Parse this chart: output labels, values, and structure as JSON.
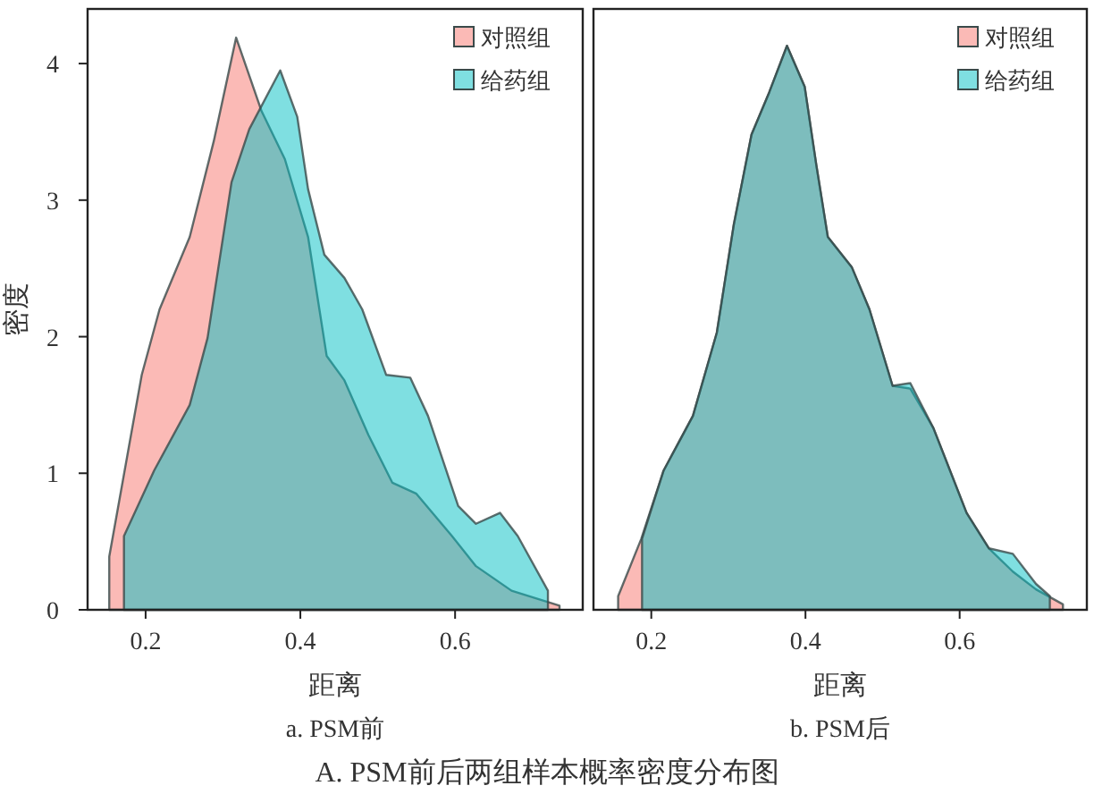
{
  "chart_data": [
    {
      "type": "area",
      "title": "a. PSM前",
      "xlabel": "距离",
      "ylabel": "密度",
      "annotations": [
        "A. PSM前后两组样本概率密度分布图"
      ],
      "xlim": [
        0.125,
        0.765
      ],
      "ylim": [
        0,
        4.4
      ],
      "xticks": [
        0.2,
        0.4,
        0.6
      ],
      "yticks": [
        0,
        1,
        2,
        3,
        4
      ],
      "legend": "top right",
      "series": [
        {
          "name": "对照组",
          "color": "#f8766d",
          "x": [
            0.153,
            0.195,
            0.218,
            0.257,
            0.288,
            0.317,
            0.35,
            0.38,
            0.41,
            0.434,
            0.457,
            0.488,
            0.519,
            0.55,
            0.596,
            0.627,
            0.673,
            0.735
          ],
          "values": [
            0.39,
            1.72,
            2.2,
            2.73,
            3.43,
            4.19,
            3.65,
            3.3,
            2.73,
            1.86,
            1.68,
            1.28,
            0.93,
            0.85,
            0.54,
            0.32,
            0.14,
            0.03
          ]
        },
        {
          "name": "给药组",
          "color": "#00bfc4",
          "x": [
            0.172,
            0.211,
            0.257,
            0.28,
            0.311,
            0.334,
            0.374,
            0.396,
            0.41,
            0.431,
            0.457,
            0.48,
            0.511,
            0.542,
            0.565,
            0.604,
            0.627,
            0.658,
            0.681,
            0.72
          ],
          "values": [
            0.54,
            1.02,
            1.5,
            1.99,
            3.13,
            3.52,
            3.95,
            3.61,
            3.08,
            2.6,
            2.43,
            2.2,
            1.72,
            1.7,
            1.42,
            0.76,
            0.63,
            0.71,
            0.54,
            0.14
          ]
        }
      ]
    },
    {
      "type": "area",
      "title": "b. PSM后",
      "xlabel": "距离",
      "xlim": [
        0.125,
        0.765
      ],
      "ylim": [
        0,
        4.4
      ],
      "xticks": [
        0.2,
        0.4,
        0.6
      ],
      "tick_labels": "x",
      "legend": "top right",
      "series": [
        {
          "name": "对照组",
          "color": "#f8766d",
          "x": [
            0.157,
            0.187,
            0.216,
            0.254,
            0.285,
            0.307,
            0.33,
            0.353,
            0.376,
            0.399,
            0.414,
            0.429,
            0.46,
            0.483,
            0.513,
            0.536,
            0.566,
            0.609,
            0.638,
            0.669,
            0.699,
            0.734
          ],
          "values": [
            0.1,
            0.52,
            1.02,
            1.42,
            2.03,
            2.82,
            3.48,
            3.79,
            4.13,
            3.83,
            3.26,
            2.73,
            2.51,
            2.2,
            1.64,
            1.62,
            1.33,
            0.71,
            0.45,
            0.28,
            0.15,
            0.04
          ]
        },
        {
          "name": "给药组",
          "color": "#00bfc4",
          "x": [
            0.188,
            0.216,
            0.254,
            0.285,
            0.307,
            0.33,
            0.353,
            0.376,
            0.399,
            0.414,
            0.429,
            0.46,
            0.483,
            0.513,
            0.536,
            0.566,
            0.609,
            0.638,
            0.669,
            0.699,
            0.717
          ],
          "values": [
            0.52,
            1.02,
            1.42,
            2.03,
            2.82,
            3.48,
            3.79,
            4.13,
            3.83,
            3.26,
            2.73,
            2.51,
            2.2,
            1.64,
            1.66,
            1.33,
            0.71,
            0.45,
            0.41,
            0.19,
            0.1
          ]
        }
      ]
    }
  ]
}
